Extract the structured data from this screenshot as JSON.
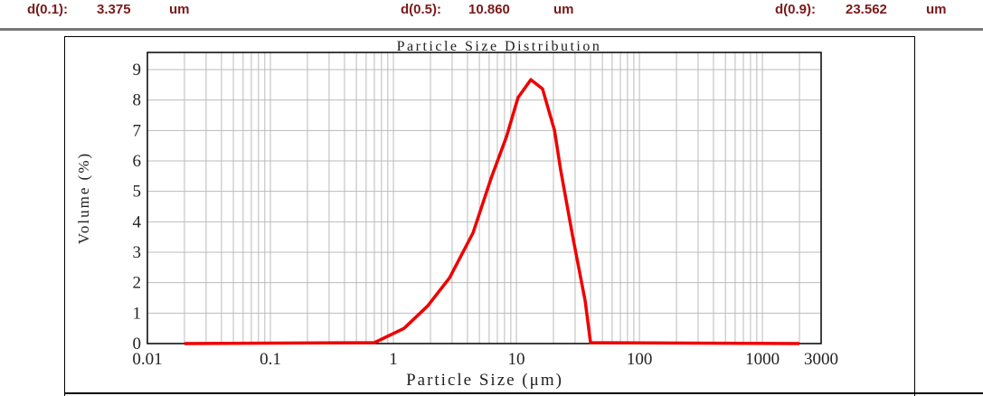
{
  "header": {
    "d10": {
      "label": "d(0.1):",
      "value": "3.375",
      "unit": "um"
    },
    "d50": {
      "label": "d(0.5):",
      "value": "10.860",
      "unit": "um"
    },
    "d90": {
      "label": "d(0.9):",
      "value": "23.562",
      "unit": "um"
    }
  },
  "chart_data": {
    "type": "line",
    "title": "Particle Size Distribution",
    "xlabel": "Particle Size (μm)",
    "ylabel": "Volume (%)",
    "xscale": "log",
    "xlim": [
      0.01,
      3000
    ],
    "ylim": [
      0,
      9.5
    ],
    "xticks": [
      0.01,
      0.1,
      1,
      10,
      100,
      1000,
      3000
    ],
    "xtick_labels": [
      "0.01",
      "0.1",
      "1",
      "10",
      "100",
      "1000",
      "3000"
    ],
    "yticks": [
      0,
      1,
      2,
      3,
      4,
      5,
      6,
      7,
      8,
      9
    ],
    "ytick_labels": [
      "0",
      "1",
      "2",
      "3",
      "4",
      "5",
      "6",
      "7",
      "8",
      "9"
    ],
    "grid": true,
    "color": "#ee0000",
    "series": [
      {
        "x": [
          0.02,
          0.7,
          1.22,
          1.9,
          2.86,
          4.44,
          6.2,
          8.3,
          10.3,
          13.1,
          16.3,
          20.4,
          22.9,
          28.6,
          36.2,
          40,
          2000
        ],
        "y": [
          0,
          0.03,
          0.5,
          1.24,
          2.16,
          3.64,
          5.41,
          6.8,
          8.08,
          8.67,
          8.37,
          7.0,
          5.7,
          3.55,
          1.4,
          0.03,
          0
        ]
      }
    ]
  }
}
